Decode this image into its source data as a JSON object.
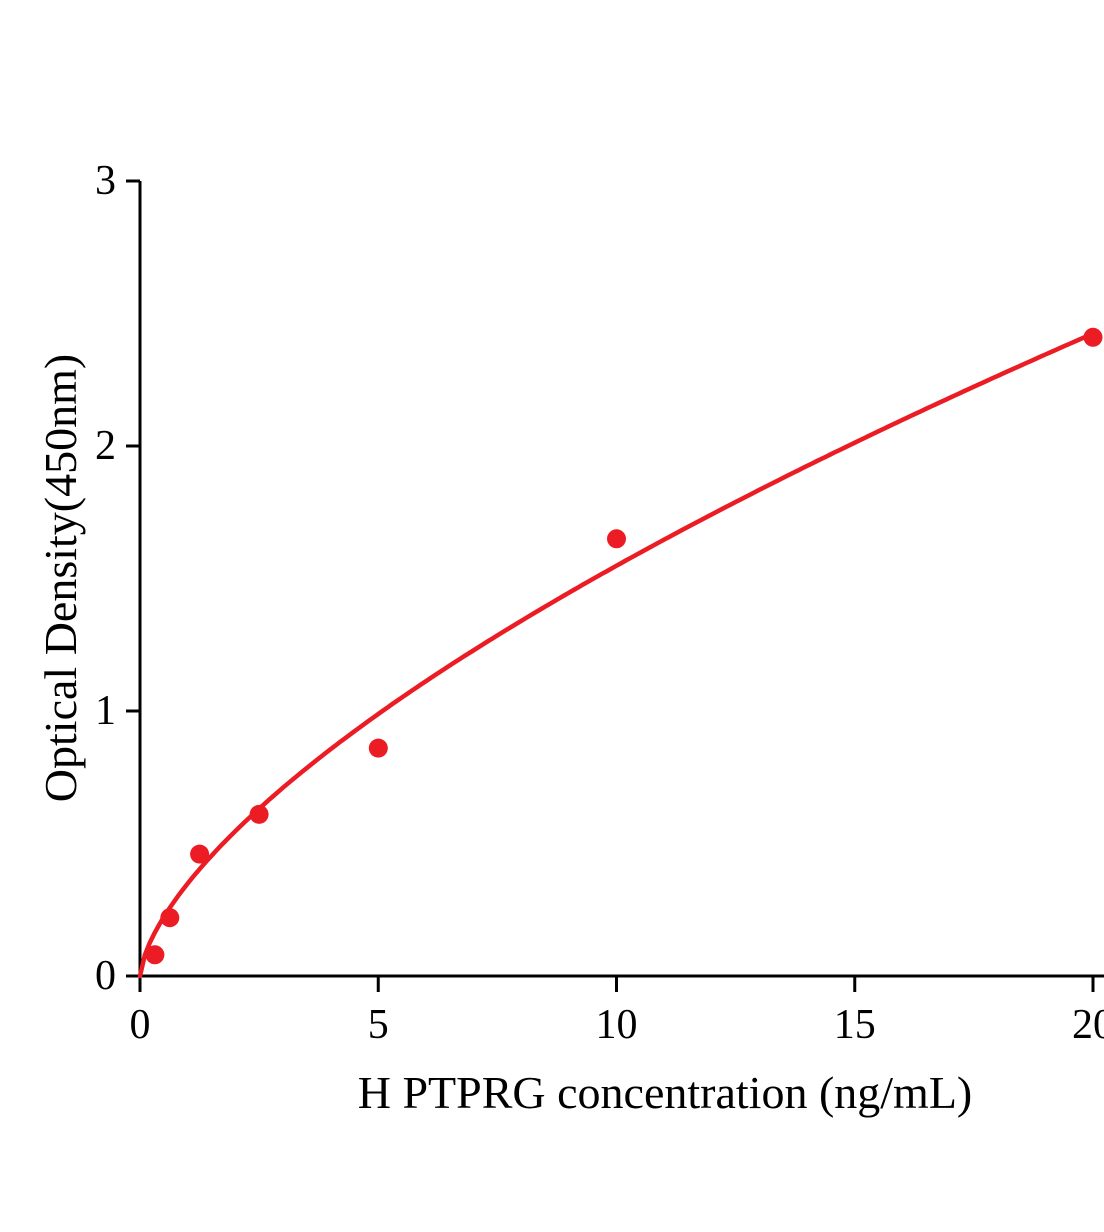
{
  "chart_data": {
    "type": "scatter",
    "title": "",
    "xlabel": "H PTPRG concentration (ng/mL)",
    "ylabel": "Optical Density(450nm)",
    "x_ticks": [
      0,
      5,
      10,
      15,
      20
    ],
    "y_ticks": [
      0,
      1,
      2,
      3
    ],
    "xlim": [
      0,
      20.8
    ],
    "ylim": [
      0,
      3
    ],
    "grid": false,
    "legend": "none",
    "points": {
      "x": [
        0.313,
        0.625,
        1.25,
        2.5,
        5,
        10,
        20
      ],
      "y": [
        0.08,
        0.22,
        0.46,
        0.61,
        0.86,
        1.65,
        2.41
      ]
    },
    "fit": {
      "type": "power",
      "a": 0.349,
      "b": 0.647
    },
    "accent_color": "#ec1c24",
    "axis_color": "#000000"
  }
}
